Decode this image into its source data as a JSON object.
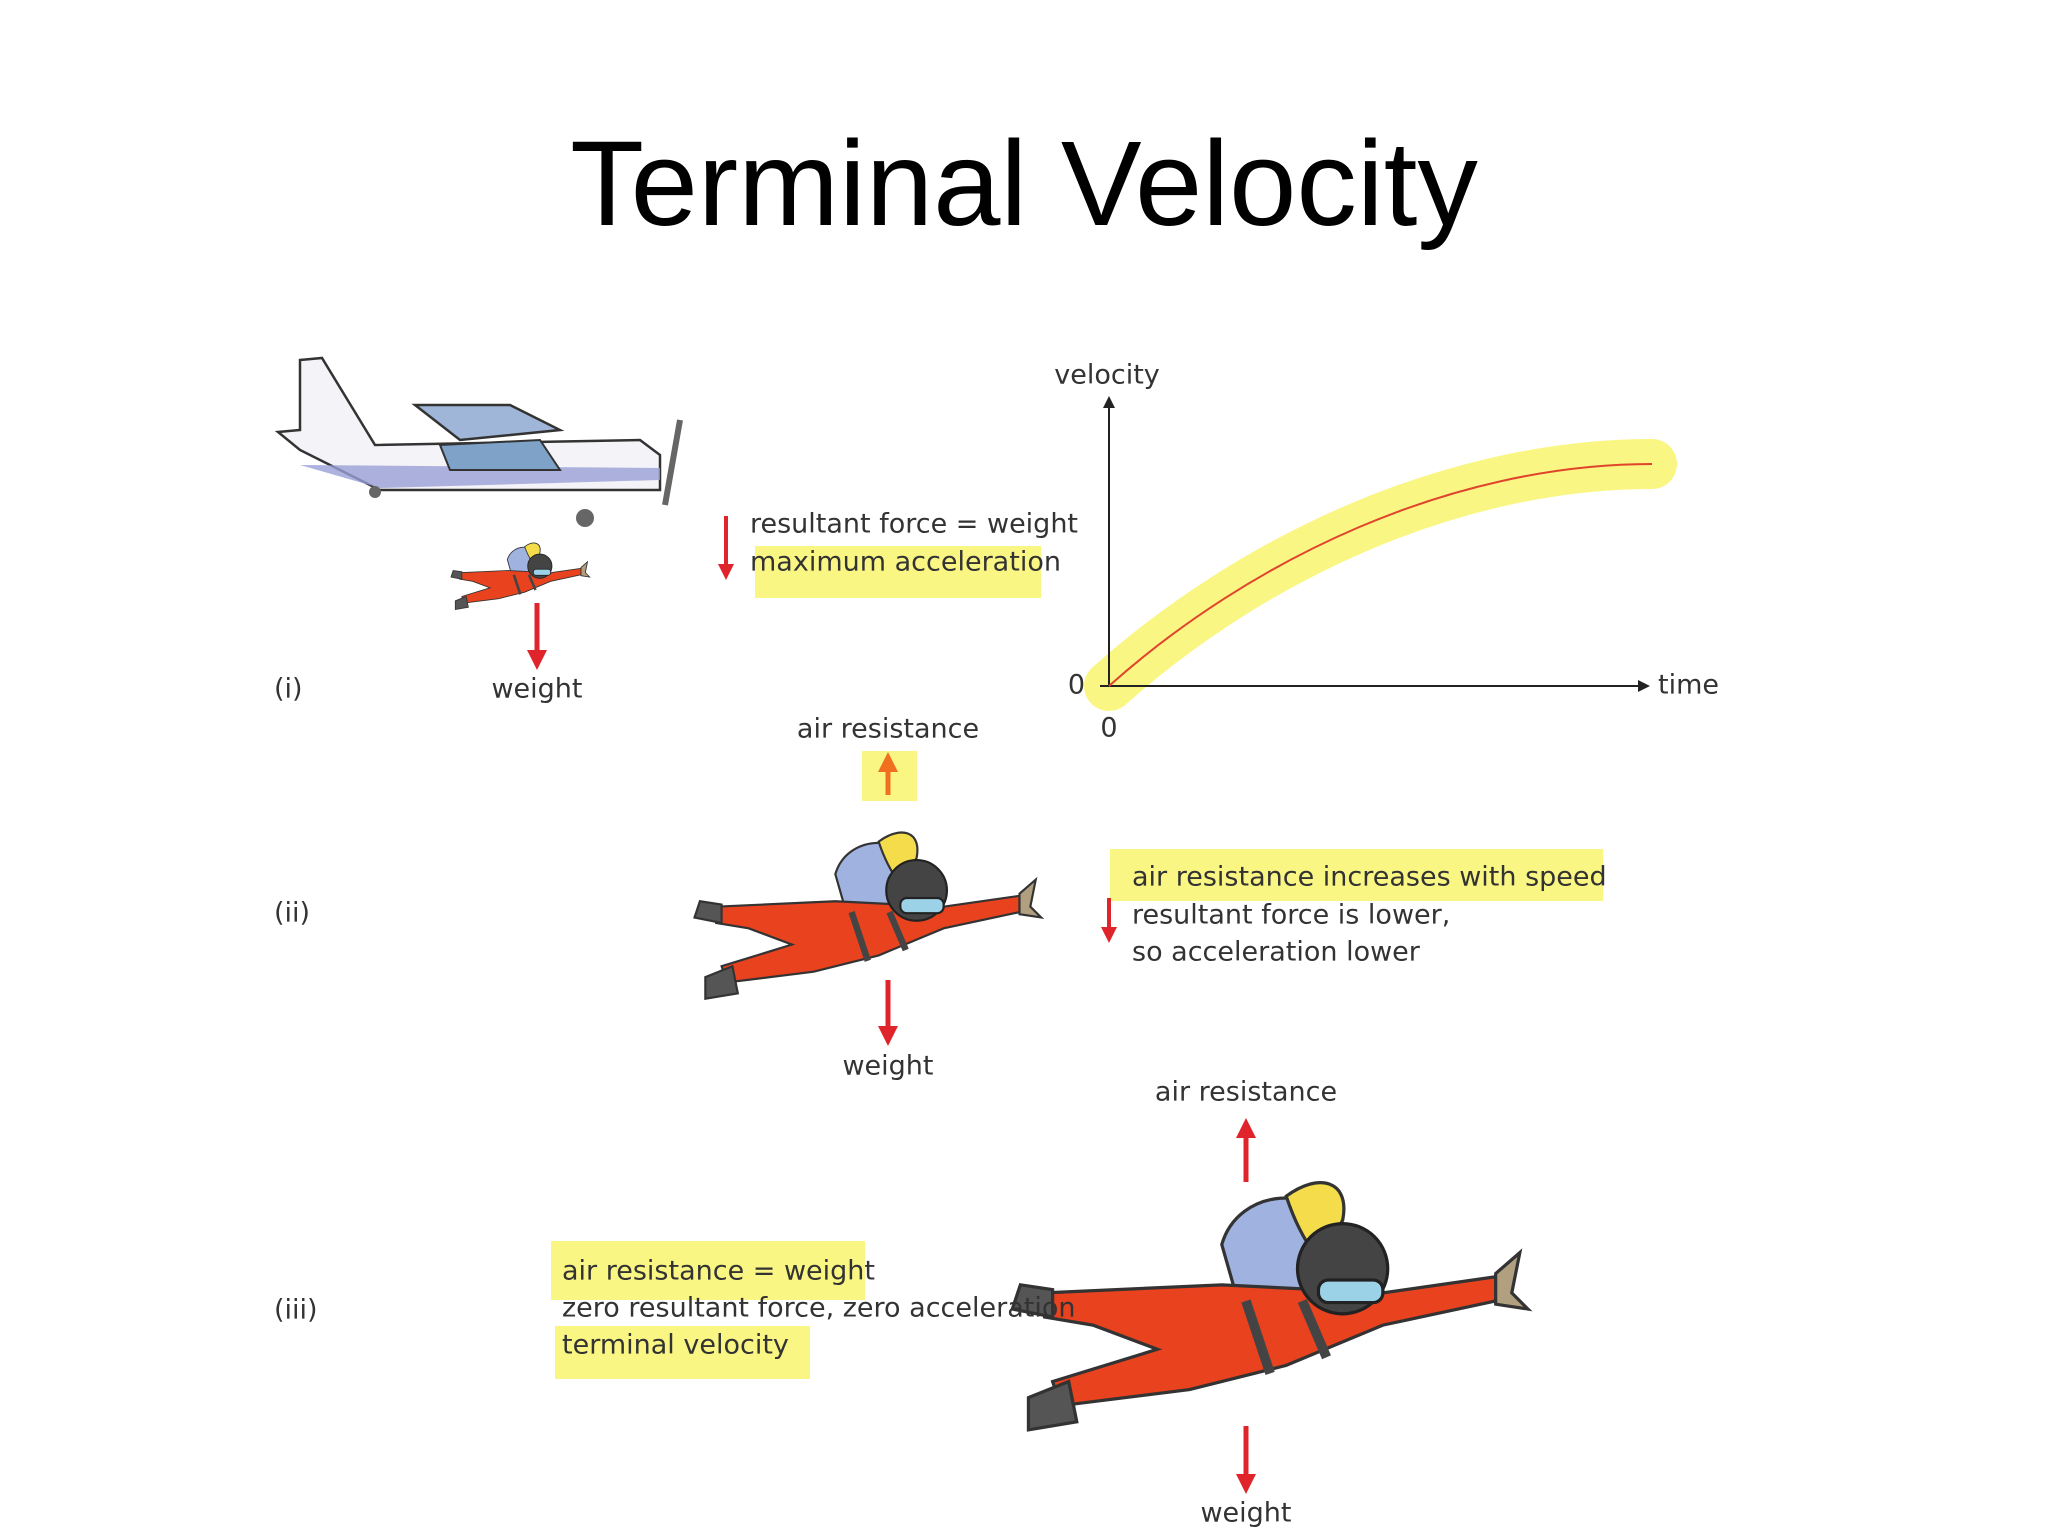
{
  "title": "Terminal Velocity",
  "stages": [
    {
      "label": "(i)",
      "weight_label": "weight",
      "notes": [
        "resultant force = weight",
        "maximum acceleration"
      ]
    },
    {
      "label": "(ii)",
      "air_resistance_label": "air resistance",
      "weight_label": "weight",
      "notes": [
        "air resistance increases with speed",
        "resultant force is lower,",
        "so acceleration lower"
      ]
    },
    {
      "label": "(iii)",
      "air_resistance_label": "air resistance",
      "weight_label": "weight",
      "notes": [
        "air resistance = weight",
        "zero resultant force, zero acceleration",
        "terminal velocity"
      ]
    }
  ],
  "graph": {
    "y_label": "velocity",
    "x_label": "time",
    "y_origin_label": "0",
    "x_origin_label": "0"
  }
}
